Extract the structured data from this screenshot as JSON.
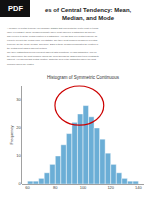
{
  "chart_data": {
    "type": "bar",
    "title": "Histogram of Symmetric Continuous",
    "annotations": [
      "PDF",
      "es of Central Tendency: Mean,",
      "Median, and Mode",
      "A measure of central tendency is a summary statistic that represents the center point or typical",
      "value of a dataset. These measures indicate where most values in a distribution fall and are",
      "also referred to as the central location of a distribution. You can think of a central tendency as",
      "refers to refers to the central value of a statistic. The three most common measures of central",
      "tendency are the mean, median, and mode. Each of these measures calculates the location of",
      "the central point using a different method.",
      "The three distributions below represent different data conditions. In each distribution, look for",
      "the region where the most common values fall. Work through the shapes and types of datasets",
      "different, you can find that central location. That's the area of the distribution where the most",
      "common values are located."
    ],
    "ylabel": "Frequency",
    "bins": [
      60,
      64,
      68,
      72,
      76,
      80,
      84,
      88,
      92,
      96,
      100,
      104,
      108,
      112,
      116,
      120,
      124,
      128,
      132,
      136,
      140
    ],
    "values": [
      1,
      1,
      2,
      4,
      7,
      10,
      14,
      18,
      22,
      25,
      28,
      24,
      20,
      16,
      11,
      7,
      4,
      2,
      1,
      1
    ],
    "color": "#6baed6",
    "xlim": [
      56,
      144
    ],
    "xticks": [
      60,
      80,
      100,
      120,
      140
    ],
    "ylim": [
      0,
      35
    ],
    "yticks": [
      0,
      10,
      20,
      30
    ],
    "grid": false
  }
}
